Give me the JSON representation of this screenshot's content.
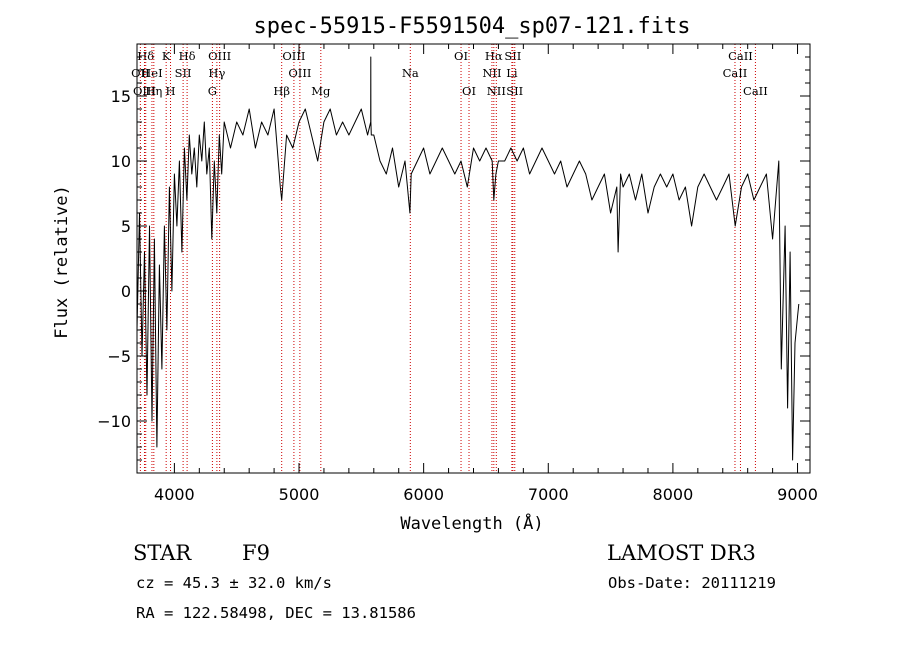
{
  "chart_data": {
    "type": "line",
    "title": "spec-55915-F5591504_sp07-121.fits",
    "xlabel": "Wavelength (Å)",
    "ylabel": "Flux (relative)",
    "xlim": [
      3700,
      9100
    ],
    "ylim": [
      -14,
      19
    ],
    "x_ticks": [
      4000,
      5000,
      6000,
      7000,
      8000,
      9000
    ],
    "x_tick_labels": [
      "4000",
      "5000",
      "6000",
      "7000",
      "8000",
      "9000"
    ],
    "y_ticks": [
      -10,
      -5,
      0,
      5,
      10,
      15
    ],
    "y_tick_labels": [
      "−10",
      "−5",
      "0",
      "5",
      "10",
      "15"
    ],
    "grid": false,
    "series": [
      {
        "name": "flux",
        "color": "#000000",
        "x": [
          3700,
          3720,
          3740,
          3760,
          3780,
          3800,
          3820,
          3840,
          3860,
          3880,
          3900,
          3920,
          3940,
          3960,
          3980,
          4000,
          4020,
          4040,
          4060,
          4080,
          4100,
          4120,
          4140,
          4160,
          4180,
          4200,
          4220,
          4240,
          4260,
          4280,
          4300,
          4320,
          4340,
          4360,
          4380,
          4400,
          4450,
          4500,
          4550,
          4600,
          4650,
          4700,
          4750,
          4800,
          4850,
          4861,
          4900,
          4950,
          5000,
          5050,
          5100,
          5150,
          5200,
          5250,
          5300,
          5350,
          5400,
          5450,
          5500,
          5550,
          5575,
          5576,
          5577,
          5580,
          5600,
          5650,
          5700,
          5750,
          5800,
          5850,
          5890,
          5900,
          5950,
          6000,
          6050,
          6100,
          6150,
          6200,
          6250,
          6300,
          6350,
          6400,
          6450,
          6500,
          6550,
          6563,
          6580,
          6600,
          6650,
          6700,
          6750,
          6800,
          6850,
          6900,
          6950,
          7000,
          7050,
          7100,
          7150,
          7200,
          7250,
          7300,
          7350,
          7400,
          7450,
          7500,
          7550,
          7560,
          7580,
          7600,
          7650,
          7700,
          7750,
          7800,
          7850,
          7900,
          7950,
          8000,
          8050,
          8100,
          8150,
          8200,
          8250,
          8300,
          8350,
          8400,
          8450,
          8500,
          8550,
          8600,
          8650,
          8700,
          8750,
          8800,
          8850,
          8870,
          8900,
          8920,
          8940,
          8960,
          8980,
          9000,
          9010
        ],
        "y": [
          -3,
          6,
          -5,
          3,
          -8,
          5,
          -10,
          4,
          -12,
          2,
          -6,
          5,
          -3,
          8,
          0,
          9,
          5,
          10,
          3,
          11,
          7,
          12,
          9,
          11,
          8,
          12,
          10,
          13,
          9,
          11,
          4,
          10,
          6,
          12,
          9,
          13,
          11,
          13,
          12,
          14,
          11,
          13,
          12,
          14,
          8,
          7,
          12,
          11,
          13,
          14,
          12,
          10,
          13,
          14,
          12,
          13,
          12,
          13,
          14,
          12,
          13,
          18,
          13,
          12,
          12,
          10,
          9,
          11,
          8,
          10,
          6,
          9,
          10,
          11,
          9,
          10,
          11,
          10,
          9,
          10,
          8,
          11,
          10,
          11,
          10,
          7,
          9,
          10,
          10,
          11,
          10,
          11,
          9,
          10,
          11,
          10,
          9,
          10,
          8,
          9,
          10,
          9,
          7,
          8,
          9,
          6,
          8,
          3,
          9,
          8,
          9,
          7,
          9,
          6,
          8,
          9,
          8,
          9,
          7,
          8,
          5,
          8,
          9,
          8,
          7,
          8,
          9,
          5,
          8,
          9,
          7,
          8,
          9,
          4,
          10,
          -6,
          5,
          -9,
          3,
          -13,
          -4,
          -2,
          -1
        ]
      }
    ],
    "line_ids": [
      {
        "label": "Hδ",
        "wavelength": 3770,
        "row": 1
      },
      {
        "label": "OII",
        "wavelength": 3727,
        "row": 2
      },
      {
        "label": "OIII",
        "wavelength": 3760,
        "row": 3
      },
      {
        "label": "HeI",
        "wavelength": 3820,
        "row": 2
      },
      {
        "label": "Hη",
        "wavelength": 3835,
        "row": 3
      },
      {
        "label": "K",
        "wavelength": 3934,
        "row": 1
      },
      {
        "label": "SII",
        "wavelength": 4070,
        "row": 2
      },
      {
        "label": "H",
        "wavelength": 3969,
        "row": 3
      },
      {
        "label": "Hδ",
        "wavelength": 4102,
        "row": 1
      },
      {
        "label": "OIII",
        "wavelength": 4363,
        "row": 1
      },
      {
        "label": "Hγ",
        "wavelength": 4341,
        "row": 2
      },
      {
        "label": "G",
        "wavelength": 4305,
        "row": 3
      },
      {
        "label": "Hβ",
        "wavelength": 4861,
        "row": 3
      },
      {
        "label": "OIII",
        "wavelength": 4959,
        "row": 1
      },
      {
        "label": "OIII",
        "wavelength": 5007,
        "row": 2
      },
      {
        "label": "Mg",
        "wavelength": 5175,
        "row": 3
      },
      {
        "label": "Na",
        "wavelength": 5893,
        "row": 2
      },
      {
        "label": "OI",
        "wavelength": 6300,
        "row": 1
      },
      {
        "label": "OI",
        "wavelength": 6364,
        "row": 3
      },
      {
        "label": "Hα",
        "wavelength": 6563,
        "row": 1
      },
      {
        "label": "NII",
        "wavelength": 6548,
        "row": 2
      },
      {
        "label": "NII",
        "wavelength": 6583,
        "row": 3
      },
      {
        "label": "SII",
        "wavelength": 6716,
        "row": 1
      },
      {
        "label": "Li",
        "wavelength": 6708,
        "row": 2
      },
      {
        "label": "SII",
        "wavelength": 6731,
        "row": 3
      },
      {
        "label": "CaII",
        "wavelength": 8542,
        "row": 1
      },
      {
        "label": "CaII",
        "wavelength": 8498,
        "row": 2
      },
      {
        "label": "CaII",
        "wavelength": 8662,
        "row": 3
      }
    ]
  },
  "info": {
    "object_class": "STAR",
    "subclass": "F9",
    "survey": "LAMOST DR3",
    "redshift": "cz = 45.3 ± 32.0 km/s",
    "obs_date": "Obs-Date: 20111219",
    "coords": "RA = 122.58498, DEC =  13.81586"
  },
  "colors": {
    "spectrum": "#000000",
    "line_marker": "#cc0000",
    "axes": "#000000",
    "background": "#ffffff"
  }
}
